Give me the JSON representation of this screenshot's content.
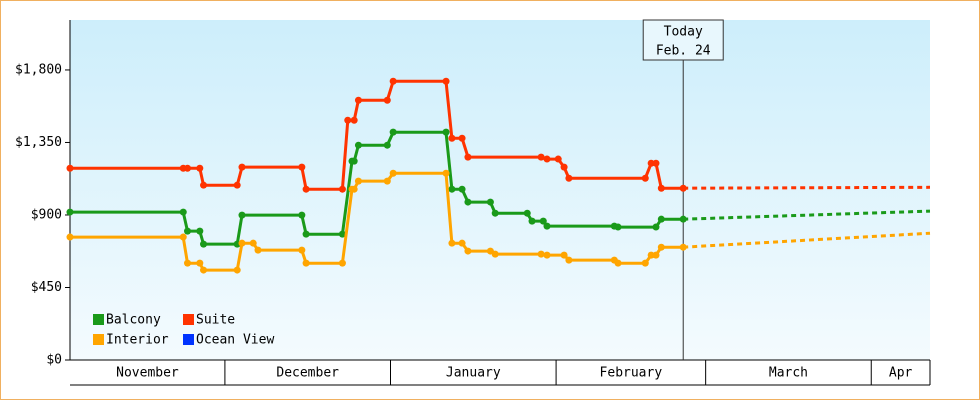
{
  "chart_data": {
    "type": "line",
    "ylim": [
      0,
      2110
    ],
    "yticks": [
      {
        "value": 0,
        "label": "$0"
      },
      {
        "value": 450,
        "label": "$450"
      },
      {
        "value": 900,
        "label": "$900"
      },
      {
        "value": 1350,
        "label": "$1,350"
      },
      {
        "value": 1800,
        "label": "$1,800"
      }
    ],
    "xlim": [
      1,
      162
    ],
    "months": [
      {
        "value": 0,
        "label": "November"
      },
      {
        "value": 30,
        "label": "December"
      },
      {
        "value": 61,
        "label": "January"
      },
      {
        "value": 92,
        "label": "February"
      },
      {
        "value": 120,
        "label": "March"
      },
      {
        "value": 151,
        "label": "Apr"
      }
    ],
    "today": {
      "x": 115.8,
      "label": [
        "Today",
        "Feb. 24"
      ]
    },
    "legend": "lower left",
    "series": [
      {
        "name": "Balcony",
        "color": "#1a9a1a",
        "x": [
          1,
          22.2,
          23,
          25.3,
          26,
          32.3,
          33.2,
          44.4,
          45.2,
          52,
          53.8,
          54.2,
          55,
          60.4,
          61.5,
          71.4,
          72.5,
          74.4,
          75.5,
          79.7,
          80.6,
          86.6,
          87.5,
          89.6,
          90.3,
          102.9,
          103.6,
          110.7,
          111.7,
          115.8
        ],
        "values": [
          918,
          918,
          800,
          800,
          719,
          719,
          899,
          899,
          781,
          781,
          1234,
          1234,
          1333,
          1333,
          1414,
          1414,
          1060,
          1060,
          980,
          980,
          911,
          911,
          862,
          862,
          831,
          831,
          825,
          825,
          874,
          874
        ],
        "forecast": {
          "x": [
            115.8,
            162
          ],
          "values": [
            874,
            924
          ]
        }
      },
      {
        "name": "Suite",
        "color": "#ff3300",
        "x": [
          1,
          22.2,
          23,
          25.3,
          26,
          32.3,
          33.2,
          44.4,
          45.2,
          52,
          53,
          54.2,
          55,
          60.4,
          61.5,
          71.4,
          72.5,
          74.4,
          75.5,
          89.2,
          90.3,
          92.4,
          93.5,
          94.4,
          108.7,
          109.8,
          110.7,
          111.7,
          115.8
        ],
        "values": [
          1190,
          1190,
          1190,
          1190,
          1085,
          1085,
          1197,
          1197,
          1060,
          1060,
          1488,
          1488,
          1612,
          1612,
          1730,
          1730,
          1376,
          1376,
          1259,
          1259,
          1247,
          1247,
          1197,
          1128,
          1128,
          1221,
          1221,
          1066,
          1066
        ],
        "forecast": {
          "x": [
            115.8,
            162
          ],
          "values": [
            1066,
            1072
          ]
        }
      },
      {
        "name": "Interior",
        "color": "#ffa500",
        "x": [
          1,
          22.2,
          23,
          25.3,
          26,
          32.3,
          33.2,
          35.3,
          36.2,
          44.4,
          45.2,
          52,
          53.8,
          54.2,
          55,
          60.4,
          61.5,
          71.4,
          72.5,
          74.4,
          75.5,
          79.7,
          80.6,
          89.2,
          90.3,
          93.5,
          94.4,
          102.9,
          103.6,
          108.7,
          109.8,
          110.7,
          111.7,
          115.8
        ],
        "values": [
          763,
          763,
          601,
          601,
          558,
          558,
          725,
          725,
          682,
          682,
          601,
          601,
          1060,
          1060,
          1110,
          1110,
          1159,
          1159,
          725,
          725,
          676,
          676,
          657,
          657,
          651,
          651,
          620,
          620,
          601,
          601,
          651,
          651,
          700,
          700
        ],
        "forecast": {
          "x": [
            115.8,
            162
          ],
          "values": [
            700,
            787
          ]
        }
      },
      {
        "name": "Ocean View",
        "color": "#0033ff",
        "x": [],
        "values": [],
        "forecast": {
          "x": [],
          "values": []
        }
      }
    ]
  }
}
